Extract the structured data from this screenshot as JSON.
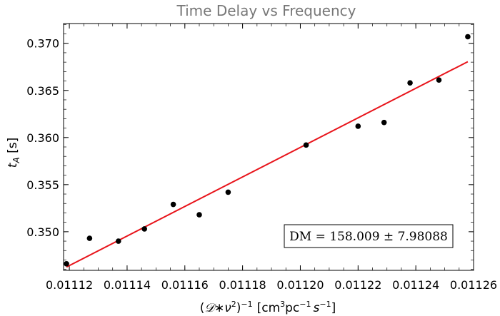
{
  "chart_data": {
    "type": "scatter",
    "title": "Time Delay vs Frequency",
    "ylabel_main": "t",
    "ylabel_sub": "A",
    "ylabel_unit": " [s]",
    "xlabel": {
      "open": "(",
      "script_d": "𝒟",
      "star": "∗",
      "nu": "ν",
      "close": ")",
      "units_open": "[cm",
      "pc": "pc",
      "s_sym": "s",
      "units_close": "]",
      "sup2": "2",
      "sup_m1": "−1",
      "sup3": "3"
    },
    "xlim": [
      0.011118,
      0.01126
    ],
    "ylim": [
      0.3459,
      0.3721
    ],
    "xticks": [
      0.01112,
      0.01114,
      0.01116,
      0.01118,
      0.0112,
      0.01122,
      0.01124,
      0.01126
    ],
    "xtick_labels": [
      "0.01112",
      "0.01114",
      "0.01116",
      "0.01118",
      "0.01120",
      "0.01122",
      "0.01124",
      "0.01126"
    ],
    "yticks": [
      0.35,
      0.355,
      0.36,
      0.365,
      0.37
    ],
    "ytick_labels": [
      "0.350",
      "0.355",
      "0.360",
      "0.365",
      "0.370"
    ],
    "points": [
      {
        "x": 0.011119,
        "y": 0.3466,
        "err": 0.0002
      },
      {
        "x": 0.011127,
        "y": 0.3493,
        "err": 0.0002
      },
      {
        "x": 0.011137,
        "y": 0.349,
        "err": 0.0002
      },
      {
        "x": 0.011146,
        "y": 0.3503,
        "err": 0.0002
      },
      {
        "x": 0.011156,
        "y": 0.3529,
        "err": 0.0002
      },
      {
        "x": 0.011165,
        "y": 0.3518,
        "err": 0.0002
      },
      {
        "x": 0.011175,
        "y": 0.3542,
        "err": 0.0002
      },
      {
        "x": 0.011202,
        "y": 0.3592,
        "err": 0.0002
      },
      {
        "x": 0.01122,
        "y": 0.3612,
        "err": 0.0002
      },
      {
        "x": 0.011229,
        "y": 0.3616,
        "err": 0.0002
      },
      {
        "x": 0.011238,
        "y": 0.3658,
        "err": 0.0002
      },
      {
        "x": 0.011248,
        "y": 0.3661,
        "err": 0.0002
      },
      {
        "x": 0.011258,
        "y": 0.3707,
        "err": 0.0002
      }
    ],
    "fit_line": {
      "x": [
        0.011119,
        0.011258
      ],
      "y": [
        0.34625,
        0.36805
      ],
      "color": "#e8141b"
    },
    "annotation": "DM = 158.009 ± 7.98088",
    "annotation_position": "bottom-right",
    "point_color": "#000000",
    "grid": false
  }
}
